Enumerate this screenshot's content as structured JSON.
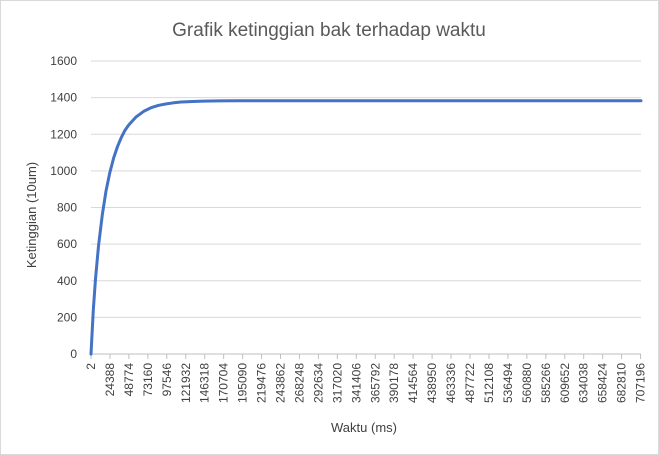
{
  "chart_data": {
    "type": "line",
    "title": "Grafik ketinggian bak terhadap waktu",
    "xlabel": "Waktu (ms)",
    "ylabel": "Ketinggian (10um)",
    "ylim": [
      0,
      1600
    ],
    "yticks": [
      0,
      200,
      400,
      600,
      800,
      1000,
      1200,
      1400,
      1600
    ],
    "xlim": [
      2,
      731583
    ],
    "xtick_labels": [
      "2",
      "24388",
      "48774",
      "73160",
      "97546",
      "121932",
      "146318",
      "170704",
      "195090",
      "219476",
      "243862",
      "268248",
      "292634",
      "317020",
      "341406",
      "365792",
      "390178",
      "414564",
      "438950",
      "463336",
      "487722",
      "512108",
      "536494",
      "560880",
      "585266",
      "609652",
      "634038",
      "658424",
      "682810",
      "707196"
    ],
    "grid": "horizontal",
    "legend": "none",
    "line_color": "#4472C4",
    "series": [
      {
        "x": [
          2,
          3000,
          6000,
          10000,
          15000,
          20000,
          25000,
          30000,
          35000,
          40000,
          45000,
          50000,
          60000,
          70000,
          80000,
          90000,
          100000,
          110000,
          120000,
          135000,
          150000,
          170000,
          195000,
          250000,
          350000,
          450000,
          550000,
          650000,
          731583
        ],
        "values": [
          0,
          240,
          410,
          590,
          760,
          890,
          990,
          1070,
          1130,
          1180,
          1220,
          1250,
          1295,
          1325,
          1345,
          1358,
          1366,
          1372,
          1376,
          1379,
          1381,
          1382,
          1383,
          1383,
          1383,
          1383,
          1383,
          1383,
          1383
        ]
      }
    ]
  }
}
